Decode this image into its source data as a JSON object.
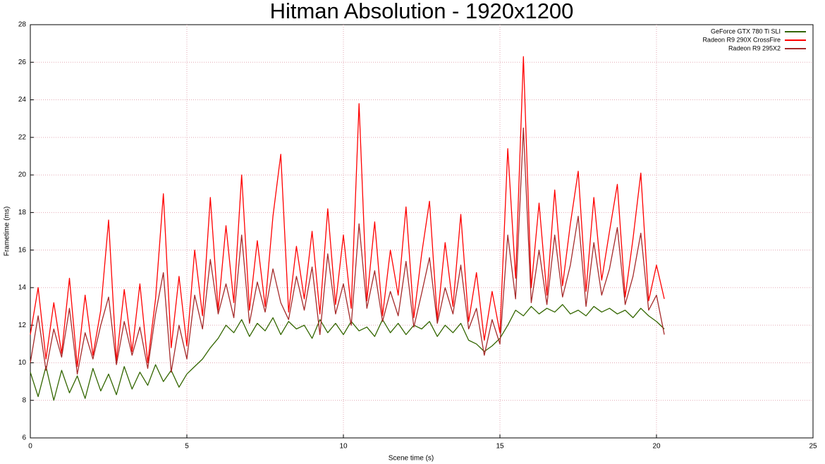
{
  "chart_data": {
    "type": "line",
    "title": "Hitman Absolution - 1920x1200",
    "x_label": "Scene time (s)",
    "y_label": "Frametime (ms)",
    "xlim": [
      0,
      25
    ],
    "xticks": [
      0,
      5,
      10,
      15,
      20,
      25
    ],
    "ylim": [
      6,
      28
    ],
    "yticks": [
      6,
      8,
      10,
      12,
      14,
      16,
      18,
      20,
      22,
      24,
      26,
      28
    ],
    "grid": true,
    "legend": "top-right",
    "x": [
      0,
      0.25,
      0.5,
      0.75,
      1,
      1.25,
      1.5,
      1.75,
      2,
      2.25,
      2.5,
      2.75,
      3,
      3.25,
      3.5,
      3.75,
      4,
      4.25,
      4.5,
      4.75,
      5,
      5.25,
      5.5,
      5.75,
      6,
      6.25,
      6.5,
      6.75,
      7,
      7.25,
      7.5,
      7.75,
      8,
      8.25,
      8.5,
      8.75,
      9,
      9.25,
      9.5,
      9.75,
      10,
      10.25,
      10.5,
      10.75,
      11,
      11.25,
      11.5,
      11.75,
      12,
      12.25,
      12.5,
      12.75,
      13,
      13.25,
      13.5,
      13.75,
      14,
      14.25,
      14.5,
      14.75,
      15,
      15.25,
      15.5,
      15.75,
      16,
      16.25,
      16.5,
      16.75,
      17,
      17.25,
      17.5,
      17.75,
      18,
      18.25,
      18.5,
      18.75,
      19,
      19.25,
      19.5,
      19.75,
      20,
      20.25
    ],
    "series": [
      {
        "name": "GeForce GTX 780 Ti SLI",
        "color": "#336600",
        "values": [
          9.5,
          8.2,
          9.8,
          8.0,
          9.6,
          8.4,
          9.3,
          8.1,
          9.7,
          8.5,
          9.4,
          8.3,
          9.8,
          8.6,
          9.5,
          8.8,
          9.9,
          9.0,
          9.6,
          8.7,
          9.4,
          9.8,
          10.2,
          10.8,
          11.3,
          12.0,
          11.6,
          12.3,
          11.4,
          12.1,
          11.7,
          12.4,
          11.5,
          12.2,
          11.8,
          12.0,
          11.3,
          12.3,
          11.6,
          12.1,
          11.5,
          12.2,
          11.7,
          11.9,
          11.4,
          12.3,
          11.6,
          12.1,
          11.5,
          12.0,
          11.8,
          12.2,
          11.4,
          12.0,
          11.6,
          12.1,
          11.2,
          11.0,
          10.6,
          10.9,
          11.3,
          12.0,
          12.8,
          12.5,
          13.0,
          12.6,
          12.9,
          12.7,
          13.1,
          12.6,
          12.8,
          12.5,
          13.0,
          12.7,
          12.9,
          12.6,
          12.8,
          12.4,
          12.9,
          12.5,
          12.2,
          11.8
        ]
      },
      {
        "name": "Radeon R9 290X CrossFire",
        "color": "#ff0000",
        "values": [
          11.5,
          14.0,
          10.2,
          13.2,
          10.5,
          14.5,
          9.8,
          13.6,
          10.4,
          12.8,
          17.6,
          10.1,
          13.9,
          10.6,
          14.2,
          10.0,
          13.4,
          19.0,
          10.8,
          14.6,
          10.9,
          16.0,
          12.5,
          18.8,
          12.8,
          17.3,
          13.2,
          20.0,
          12.8,
          16.5,
          13.0,
          17.8,
          21.1,
          12.7,
          16.2,
          13.4,
          17.0,
          12.6,
          18.2,
          13.1,
          16.8,
          12.9,
          23.8,
          13.3,
          17.5,
          12.5,
          16.0,
          13.6,
          18.3,
          12.4,
          15.8,
          18.6,
          12.3,
          16.4,
          13.0,
          17.9,
          12.2,
          14.8,
          11.2,
          13.8,
          11.6,
          21.4,
          14.5,
          26.3,
          14.0,
          18.5,
          13.6,
          19.2,
          14.1,
          17.4,
          20.2,
          13.8,
          18.8,
          14.4,
          17.0,
          19.5,
          13.5,
          16.6,
          20.1,
          13.3,
          15.2,
          13.4
        ]
      },
      {
        "name": "Radeon R9 295X2",
        "color": "#a52a2a",
        "values": [
          10.0,
          12.5,
          9.6,
          11.8,
          10.3,
          12.9,
          9.4,
          11.6,
          10.2,
          12.0,
          13.5,
          9.9,
          12.2,
          10.4,
          11.9,
          9.7,
          12.6,
          14.8,
          9.5,
          12.0,
          10.2,
          13.6,
          11.8,
          15.5,
          12.6,
          14.2,
          12.4,
          16.8,
          12.1,
          14.3,
          12.7,
          15.0,
          13.2,
          12.3,
          14.6,
          12.8,
          15.1,
          11.5,
          15.8,
          12.6,
          14.2,
          12.0,
          17.4,
          12.9,
          14.9,
          12.2,
          13.8,
          12.5,
          15.4,
          11.9,
          13.7,
          15.6,
          12.1,
          14.0,
          12.6,
          15.2,
          11.8,
          12.9,
          10.4,
          12.3,
          11.0,
          16.8,
          13.4,
          22.5,
          13.2,
          16.0,
          13.1,
          16.8,
          13.5,
          15.2,
          17.8,
          13.0,
          16.4,
          13.6,
          15.0,
          17.2,
          13.1,
          14.6,
          16.9,
          12.8,
          13.6,
          11.5
        ]
      }
    ]
  }
}
